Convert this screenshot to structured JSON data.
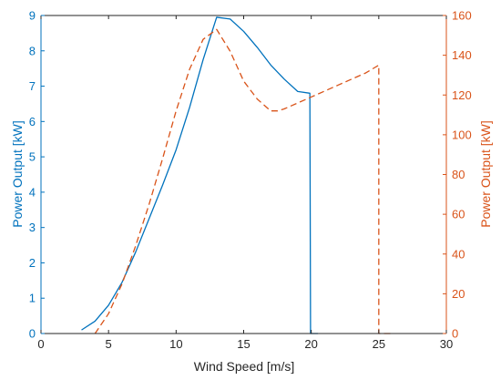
{
  "chart_data": {
    "type": "line",
    "xlabel": "Wind Speed [m/s]",
    "ylabel_left": "Power Output [kW]",
    "ylabel_right": "Power Output [kW]",
    "xlim": [
      0,
      30
    ],
    "ylim_left": [
      0,
      9
    ],
    "ylim_right": [
      0,
      160
    ],
    "x_ticks": [
      0,
      5,
      10,
      15,
      20,
      25,
      30
    ],
    "y_ticks_left": [
      0,
      1,
      2,
      3,
      4,
      5,
      6,
      7,
      8,
      9
    ],
    "y_ticks_right": [
      0,
      20,
      40,
      60,
      80,
      100,
      120,
      140,
      160
    ],
    "grid": false,
    "colors": {
      "left": "#0072BD",
      "right": "#D95319",
      "axes": "#262626"
    },
    "series": [
      {
        "axis": "left",
        "style": "solid",
        "x": [
          3,
          4,
          5,
          6,
          7,
          8,
          9,
          10,
          11,
          12,
          13,
          14,
          15,
          16,
          17,
          18,
          19,
          19.9,
          19.95,
          20,
          20.5
        ],
        "y": [
          0.1,
          0.35,
          0.8,
          1.45,
          2.3,
          3.25,
          4.2,
          5.2,
          6.4,
          7.75,
          8.95,
          8.9,
          8.55,
          8.1,
          7.6,
          7.2,
          6.85,
          6.8,
          0,
          0,
          0
        ]
      },
      {
        "axis": "right",
        "style": "dashed",
        "x": [
          4,
          5,
          6,
          7,
          8,
          9,
          10,
          11,
          12,
          13,
          14,
          15,
          16,
          17,
          17.5,
          18,
          19,
          20,
          21,
          22,
          23,
          24,
          25,
          25,
          26
        ],
        "y": [
          0,
          10,
          25,
          44,
          65,
          88,
          112,
          133,
          148,
          153,
          142,
          127,
          118,
          112,
          112,
          113,
          116,
          119,
          122,
          125,
          128,
          131,
          135,
          0,
          0
        ]
      }
    ]
  }
}
